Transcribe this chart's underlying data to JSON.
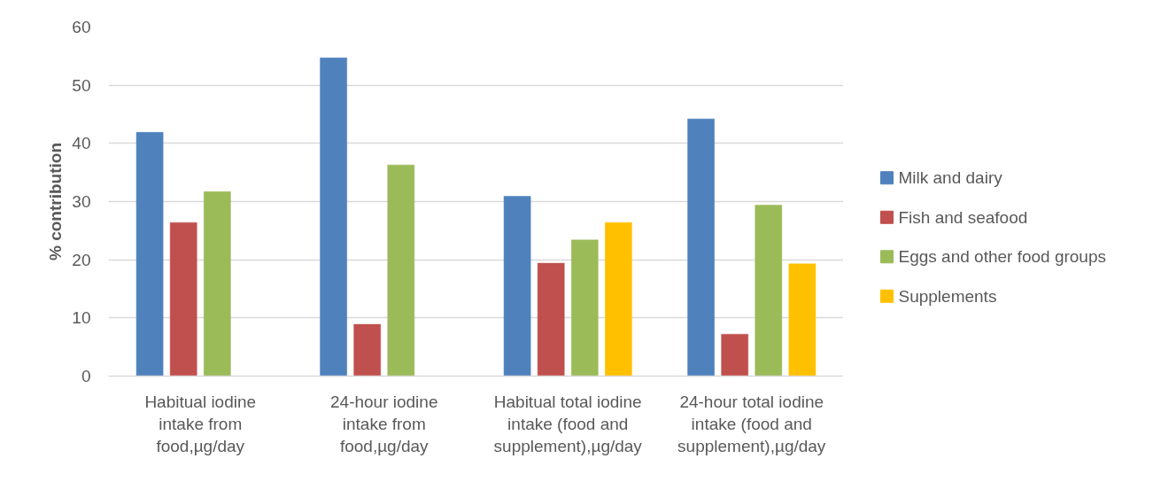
{
  "chart_data": {
    "type": "bar",
    "ylabel": "% contribution",
    "categories": [
      "Habitual iodine intake from food,µg/day",
      "24-hour iodine intake from food,µg/day",
      "Habitual total iodine intake (food and supplement),µg/day",
      "24-hour total iodine intake (food and supplement),µg/day"
    ],
    "series": [
      {
        "name": "Milk and dairy",
        "color": "#4f81bd",
        "values": [
          41.9,
          54.7,
          30.9,
          44.2
        ]
      },
      {
        "name": "Fish and seafood",
        "color": "#c0504d",
        "values": [
          26.4,
          8.9,
          19.4,
          7.2
        ]
      },
      {
        "name": "Eggs and other food groups",
        "color": "#9bbb59",
        "values": [
          31.7,
          36.3,
          23.4,
          29.4
        ]
      },
      {
        "name": "Supplements",
        "color": "#ffc000",
        "values": [
          null,
          null,
          26.4,
          19.3
        ]
      }
    ],
    "ylim": [
      0,
      60
    ],
    "yticks": [
      0,
      10,
      20,
      30,
      40,
      50,
      60
    ],
    "grid": "y",
    "legend": "right"
  }
}
